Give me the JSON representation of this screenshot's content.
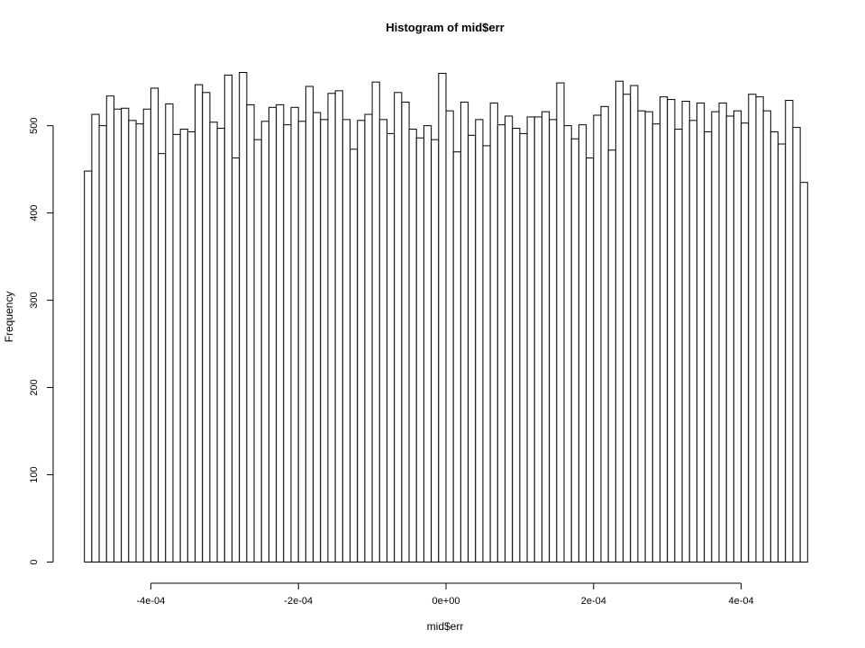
{
  "chart_data": {
    "type": "bar",
    "title": "Histogram of mid$err",
    "xlabel": "mid$err",
    "ylabel": "Frequency",
    "xlim": [
      -0.0005,
      0.0005
    ],
    "ylim": [
      0,
      560
    ],
    "bin_width": 1e-05,
    "bin_start": -0.0005,
    "x_ticks": [
      -0.0004,
      -0.0002,
      0,
      0.0002,
      0.0004
    ],
    "x_tick_labels": [
      "-4e-04",
      "-2e-04",
      "0e+00",
      "2e-04",
      "4e-04"
    ],
    "y_ticks": [
      0,
      100,
      200,
      300,
      400,
      500
    ],
    "y_tick_labels": [
      "0",
      "100",
      "200",
      "300",
      "400",
      "500"
    ],
    "grid": false,
    "values": [
      448,
      513,
      500,
      534,
      519,
      520,
      506,
      502,
      519,
      543,
      468,
      525,
      490,
      496,
      493,
      547,
      538,
      504,
      497,
      558,
      463,
      561,
      524,
      484,
      505,
      521,
      524,
      501,
      521,
      505,
      545,
      515,
      507,
      537,
      540,
      507,
      473,
      506,
      513,
      550,
      507,
      491,
      538,
      527,
      496,
      486,
      500,
      484,
      560,
      517,
      470,
      527,
      489,
      507,
      477,
      526,
      501,
      511,
      497,
      491,
      510,
      510,
      516,
      507,
      549,
      500,
      485,
      501,
      463,
      512,
      522,
      472,
      551,
      536,
      546,
      517,
      516,
      502,
      533,
      530,
      496,
      528,
      506,
      526,
      493,
      516,
      526,
      511,
      517,
      503,
      536,
      533,
      517,
      493,
      479,
      529,
      498,
      435
    ]
  }
}
